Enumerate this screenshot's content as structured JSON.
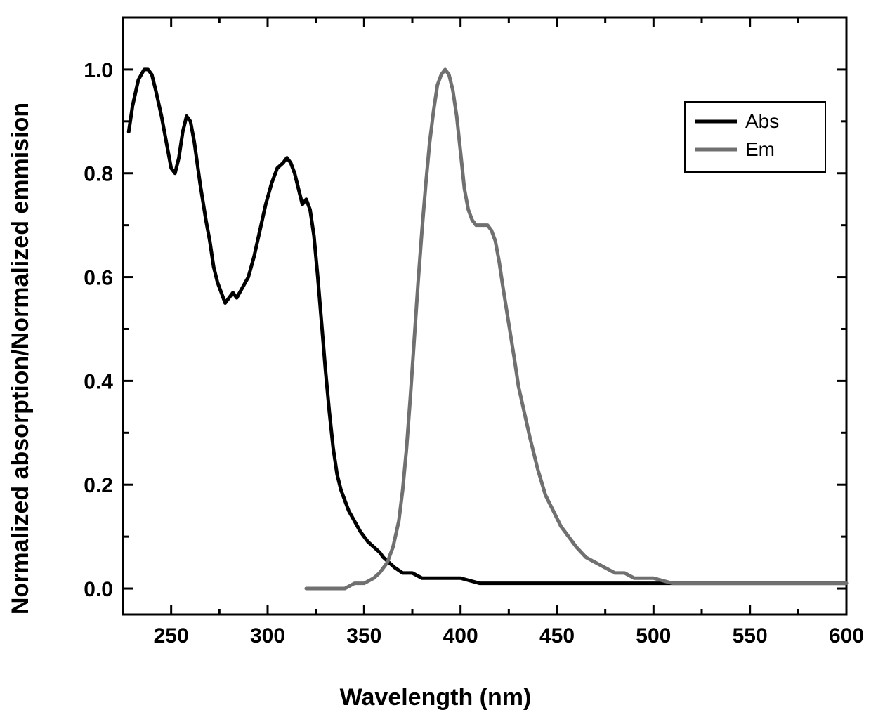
{
  "chart": {
    "type": "line",
    "xlabel": "Wavelength (nm)",
    "ylabel": "Normalized absorption/Normalized emmision",
    "xlim": [
      225,
      600
    ],
    "ylim": [
      -0.05,
      1.1
    ],
    "xticks": [
      250,
      300,
      350,
      400,
      450,
      500,
      550,
      600
    ],
    "yticks": [
      0.0,
      0.2,
      0.4,
      0.6,
      0.8,
      1.0
    ],
    "xtick_labels": [
      "250",
      "300",
      "350",
      "400",
      "450",
      "500",
      "550",
      "600"
    ],
    "ytick_labels": [
      "0.0",
      "0.2",
      "0.4",
      "0.6",
      "0.8",
      "1.0"
    ],
    "minor_xticks": [
      225,
      275,
      325,
      375,
      425,
      475,
      525,
      575
    ],
    "minor_yticks": [
      0.1,
      0.3,
      0.5,
      0.7,
      0.9,
      1.1
    ],
    "tick_fontsize": 30,
    "label_fontsize": 34,
    "legend": {
      "items": [
        {
          "label": "Abs",
          "color": "#000000"
        },
        {
          "label": "Em",
          "color": "#707070"
        }
      ],
      "position": "upper-right",
      "fontsize": 28,
      "line_length": 60,
      "line_width": 5
    },
    "background_color": "#ffffff",
    "axis_color": "#000000",
    "axis_width": 3,
    "tick_length_major": 14,
    "tick_length_minor": 8,
    "series": [
      {
        "name": "Abs",
        "color": "#000000",
        "line_width": 5,
        "x": [
          228,
          230,
          233,
          236,
          238,
          240,
          242,
          245,
          248,
          250,
          252,
          254,
          256,
          258,
          260,
          262,
          265,
          268,
          270,
          272,
          274,
          276,
          278,
          280,
          282,
          284,
          287,
          290,
          293,
          296,
          299,
          302,
          305,
          308,
          310,
          312,
          314,
          316,
          318,
          320,
          322,
          324,
          326,
          328,
          330,
          332,
          334,
          336,
          338,
          340,
          342,
          345,
          348,
          350,
          352,
          355,
          358,
          360,
          363,
          366,
          370,
          375,
          380,
          385,
          390,
          395,
          400,
          410,
          420,
          440,
          460,
          480,
          500,
          520,
          540,
          560,
          580,
          600
        ],
        "y": [
          0.88,
          0.93,
          0.98,
          1.0,
          1.0,
          0.99,
          0.96,
          0.91,
          0.85,
          0.81,
          0.8,
          0.83,
          0.88,
          0.91,
          0.9,
          0.86,
          0.78,
          0.71,
          0.67,
          0.62,
          0.59,
          0.57,
          0.55,
          0.56,
          0.57,
          0.56,
          0.58,
          0.6,
          0.64,
          0.69,
          0.74,
          0.78,
          0.81,
          0.82,
          0.83,
          0.82,
          0.8,
          0.77,
          0.74,
          0.75,
          0.73,
          0.68,
          0.6,
          0.51,
          0.42,
          0.34,
          0.27,
          0.22,
          0.19,
          0.17,
          0.15,
          0.13,
          0.11,
          0.1,
          0.09,
          0.08,
          0.07,
          0.06,
          0.05,
          0.04,
          0.03,
          0.03,
          0.02,
          0.02,
          0.02,
          0.02,
          0.02,
          0.01,
          0.01,
          0.01,
          0.01,
          0.01,
          0.01,
          0.01,
          0.01,
          0.01,
          0.01,
          0.01
        ]
      },
      {
        "name": "Em",
        "color": "#707070",
        "line_width": 5,
        "x": [
          320,
          325,
          330,
          335,
          340,
          345,
          350,
          355,
          358,
          360,
          362,
          365,
          368,
          370,
          372,
          374,
          376,
          378,
          380,
          382,
          384,
          386,
          388,
          390,
          392,
          394,
          396,
          398,
          400,
          402,
          404,
          406,
          408,
          410,
          412,
          414,
          416,
          418,
          420,
          422,
          425,
          428,
          430,
          433,
          436,
          440,
          444,
          448,
          452,
          456,
          460,
          465,
          470,
          475,
          480,
          485,
          490,
          495,
          500,
          510,
          520,
          530,
          540,
          550,
          560,
          570,
          580,
          590,
          600
        ],
        "y": [
          0.0,
          0.0,
          0.0,
          0.0,
          0.0,
          0.01,
          0.01,
          0.02,
          0.03,
          0.04,
          0.05,
          0.08,
          0.13,
          0.19,
          0.27,
          0.37,
          0.48,
          0.59,
          0.69,
          0.78,
          0.86,
          0.92,
          0.97,
          0.99,
          1.0,
          0.99,
          0.96,
          0.91,
          0.84,
          0.77,
          0.73,
          0.71,
          0.7,
          0.7,
          0.7,
          0.7,
          0.69,
          0.67,
          0.63,
          0.58,
          0.51,
          0.44,
          0.39,
          0.34,
          0.29,
          0.23,
          0.18,
          0.15,
          0.12,
          0.1,
          0.08,
          0.06,
          0.05,
          0.04,
          0.03,
          0.03,
          0.02,
          0.02,
          0.02,
          0.01,
          0.01,
          0.01,
          0.01,
          0.01,
          0.01,
          0.01,
          0.01,
          0.01,
          0.01
        ]
      }
    ]
  }
}
